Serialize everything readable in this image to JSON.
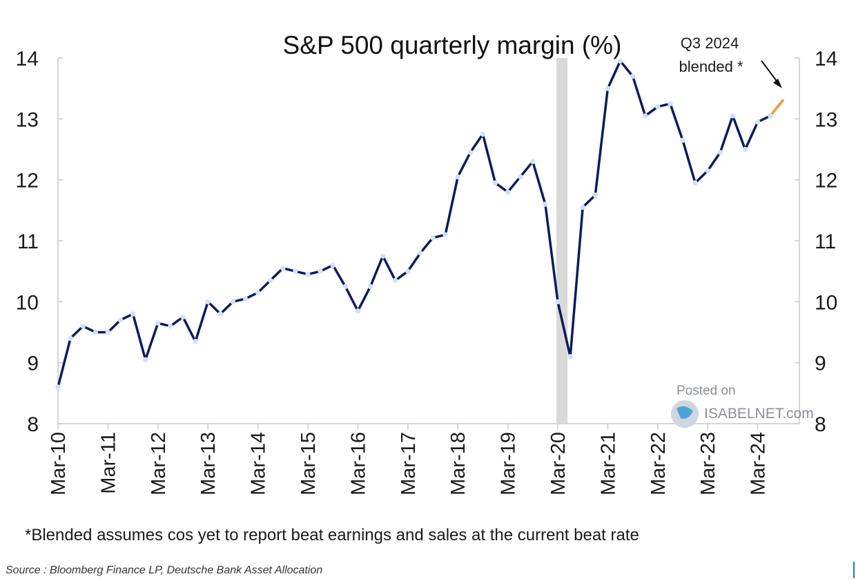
{
  "chart_data": {
    "type": "line",
    "title": "S&P 500 quarterly margin (%)",
    "xlabel": "",
    "ylabel": "",
    "ylim": [
      8,
      14
    ],
    "yticks": [
      "8",
      "9",
      "10",
      "11",
      "12",
      "13",
      "14"
    ],
    "x_tick_labels": [
      "Mar-10",
      "Mar-11",
      "Mar-12",
      "Mar-13",
      "Mar-14",
      "Mar-15",
      "Mar-16",
      "Mar-17",
      "Mar-18",
      "Mar-19",
      "Mar-20",
      "Mar-21",
      "Mar-22",
      "Mar-23",
      "Mar-24"
    ],
    "grid": false,
    "shaded_period": [
      "Mar-20",
      "Jun-20"
    ],
    "series": [
      {
        "color": "#0d1b5e",
        "x": [
          "Mar-10",
          "Jun-10",
          "Sep-10",
          "Dec-10",
          "Mar-11",
          "Jun-11",
          "Sep-11",
          "Dec-11",
          "Mar-12",
          "Jun-12",
          "Sep-12",
          "Dec-12",
          "Mar-13",
          "Jun-13",
          "Sep-13",
          "Dec-13",
          "Mar-14",
          "Jun-14",
          "Sep-14",
          "Dec-14",
          "Mar-15",
          "Jun-15",
          "Sep-15",
          "Dec-15",
          "Mar-16",
          "Jun-16",
          "Sep-16",
          "Dec-16",
          "Mar-17",
          "Jun-17",
          "Sep-17",
          "Dec-17",
          "Mar-18",
          "Jun-18",
          "Sep-18",
          "Dec-18",
          "Mar-19",
          "Jun-19",
          "Sep-19",
          "Dec-19",
          "Mar-20",
          "Jun-20",
          "Sep-20",
          "Dec-20",
          "Mar-21",
          "Jun-21",
          "Sep-21",
          "Dec-21",
          "Mar-22",
          "Jun-22",
          "Sep-22",
          "Dec-22",
          "Mar-23",
          "Jun-23",
          "Sep-23",
          "Dec-23",
          "Mar-24",
          "Jun-24"
        ],
        "values": [
          8.6,
          9.4,
          9.6,
          9.5,
          9.5,
          9.7,
          9.8,
          9.05,
          9.65,
          9.6,
          9.75,
          9.35,
          10.0,
          9.8,
          10.0,
          10.05,
          10.15,
          10.35,
          10.55,
          10.5,
          10.45,
          10.5,
          10.6,
          10.25,
          9.85,
          10.25,
          10.75,
          10.35,
          10.5,
          10.8,
          11.05,
          11.1,
          12.05,
          12.45,
          12.75,
          11.95,
          11.8,
          12.05,
          12.3,
          11.6,
          10.0,
          9.1,
          11.55,
          11.75,
          13.5,
          13.95,
          13.7,
          13.05,
          13.2,
          13.25,
          12.65,
          11.95,
          12.15,
          12.45,
          13.05,
          12.5,
          12.95,
          13.05
        ]
      },
      {
        "name": "Q3 2024 blended *",
        "color": "#e8a24a",
        "x": [
          "Jun-24",
          "Sep-24"
        ],
        "values": [
          13.05,
          13.3
        ]
      }
    ],
    "annotations": [
      {
        "text_line1": "Q3 2024",
        "text_line2": "blended *",
        "target": "Sep-24"
      }
    ]
  },
  "watermark": {
    "line1": "Posted on",
    "line2": "ISABELNET.com"
  },
  "footnote": "*Blended assumes cos yet to report beat earnings and sales at the current beat rate",
  "source": "Source : Bloomberg Finance LP, Deutsche Bank Asset Allocation"
}
